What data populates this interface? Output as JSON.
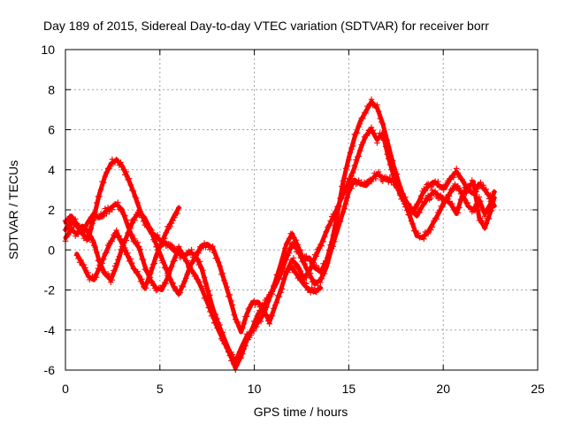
{
  "chart_data": {
    "type": "scatter",
    "title": "Day 189 of 2015, Sidereal Day-to-day VTEC variation (SDTVAR) for receiver borr",
    "xlabel": "GPS time / hours",
    "ylabel": "SDTVAR / TECUs",
    "xlim": [
      0,
      25
    ],
    "ylim": [
      -6,
      10
    ],
    "x_ticks": [
      "0",
      "5",
      "10",
      "15",
      "20",
      "25"
    ],
    "y_ticks": [
      "-6",
      "-4",
      "-2",
      "0",
      "2",
      "4",
      "6",
      "8",
      "10"
    ],
    "grid": true,
    "marker": "plus",
    "color": "#ff0000",
    "series": [
      {
        "x": [
          0.0,
          0.3,
          0.6,
          0.9,
          1.2,
          1.5,
          1.8,
          2.1,
          2.4,
          2.7,
          3.0,
          3.3,
          3.6,
          3.9,
          4.2,
          4.5,
          4.8,
          5.1,
          5.4,
          5.7,
          6.0,
          6.3,
          6.6,
          6.9,
          7.2,
          7.5,
          7.8,
          8.1,
          8.4,
          8.7,
          9.0,
          9.3,
          9.6,
          9.9,
          10.2,
          10.5,
          10.8,
          11.1,
          11.4,
          11.7,
          12.0,
          12.3,
          12.6,
          12.9,
          13.2,
          13.5,
          13.8,
          14.1,
          14.4,
          14.7,
          15.0,
          15.3,
          15.6,
          15.9,
          16.2,
          16.5,
          16.8,
          17.1,
          17.4,
          17.7,
          18.0,
          18.3,
          18.6,
          18.9,
          19.2,
          19.5,
          19.8,
          20.1,
          20.4,
          20.7,
          21.0,
          21.3,
          21.6,
          21.9,
          22.2,
          22.5,
          22.7
        ],
        "y": [
          1.0,
          1.4,
          1.2,
          0.8,
          0.5,
          1.6,
          2.8,
          3.7,
          4.3,
          4.5,
          4.2,
          3.6,
          2.9,
          2.1,
          1.4,
          0.9,
          0.7,
          0.4,
          0.3,
          0.0,
          -0.2,
          -0.3,
          -0.1,
          -0.3,
          -0.9,
          -1.9,
          -2.9,
          -3.7,
          -4.4,
          -5.1,
          -5.6,
          -4.9,
          -4.3,
          -4.0,
          -3.6,
          -3.2,
          -2.4,
          -1.6,
          -0.7,
          0.3,
          0.8,
          0.2,
          -0.5,
          -0.4,
          -0.9,
          -1.1,
          -0.6,
          0.4,
          1.8,
          3.4,
          4.6,
          5.6,
          6.4,
          6.9,
          7.4,
          7.1,
          6.3,
          5.2,
          4.1,
          3.2,
          2.4,
          1.9,
          2.2,
          2.8,
          3.2,
          3.4,
          3.2,
          3.1,
          3.6,
          3.9,
          3.5,
          3.0,
          2.8,
          3.3,
          3.0,
          2.6,
          2.2
        ]
      },
      {
        "x": [
          0.0,
          0.3,
          0.6,
          0.9,
          1.2,
          1.5,
          1.8,
          2.1,
          2.4,
          2.7,
          3.0,
          3.3,
          3.6,
          3.9,
          4.2,
          4.5,
          4.8,
          5.1,
          5.4,
          5.7,
          6.0,
          6.3,
          6.6,
          6.9,
          7.2,
          7.5,
          7.8,
          8.1,
          8.4,
          8.7,
          9.0,
          9.3,
          9.6,
          9.9,
          10.2,
          10.5,
          10.8,
          11.1,
          11.4,
          11.7,
          12.0,
          12.3,
          12.6,
          12.9,
          13.2,
          13.5,
          13.8,
          14.1,
          14.4,
          14.7,
          15.0,
          15.3,
          15.6,
          15.9,
          16.2,
          16.5,
          16.8,
          17.1,
          17.4,
          17.7,
          18.0,
          18.3,
          18.6,
          18.9,
          19.2,
          19.5,
          19.8,
          20.1,
          20.4,
          20.7,
          21.0,
          21.3,
          21.6,
          21.9,
          22.2,
          22.5,
          22.7
        ],
        "y": [
          0.6,
          1.0,
          0.8,
          1.2,
          0.9,
          0.4,
          -0.6,
          -1.2,
          -1.5,
          -0.8,
          0.1,
          0.8,
          1.5,
          1.9,
          1.6,
          1.0,
          0.3,
          -0.4,
          -1.1,
          -1.8,
          -2.2,
          -1.6,
          -0.8,
          -0.3,
          0.2,
          0.3,
          0.1,
          -0.6,
          -1.5,
          -2.4,
          -3.4,
          -4.1,
          -3.2,
          -2.6,
          -2.6,
          -3.0,
          -3.6,
          -2.8,
          -2.0,
          -1.1,
          -0.5,
          -0.8,
          -1.4,
          -1.1,
          -0.4,
          0.2,
          0.9,
          1.5,
          2.1,
          2.8,
          3.4,
          4.1,
          5.0,
          5.7,
          6.0,
          5.5,
          5.8,
          4.6,
          3.6,
          2.8,
          2.3,
          1.5,
          0.7,
          0.6,
          0.9,
          1.4,
          1.9,
          2.5,
          2.3,
          1.8,
          2.7,
          3.1,
          3.4,
          1.6,
          1.1,
          1.9,
          2.6
        ]
      },
      {
        "x": [
          0.0,
          0.3,
          0.6,
          0.9,
          1.2,
          1.5,
          1.8,
          2.1,
          2.4,
          2.7,
          3.0,
          3.3,
          3.6,
          3.9,
          4.2,
          4.5,
          4.8,
          5.1,
          5.4,
          5.7,
          6.0,
          6.3,
          6.6,
          6.9,
          7.2,
          7.5,
          7.8,
          8.1,
          8.4,
          8.7,
          9.0,
          9.3,
          9.6,
          9.9,
          10.2,
          10.5,
          10.8,
          11.1,
          11.4,
          11.7,
          12.0,
          12.3,
          12.6,
          12.9,
          13.2,
          13.5,
          13.8,
          14.1,
          14.4,
          14.7,
          15.0,
          15.3,
          15.6,
          15.9,
          16.2,
          16.5,
          16.8,
          17.1,
          17.4,
          17.7,
          18.0,
          18.3,
          18.6,
          18.9,
          19.2,
          19.5,
          19.8,
          20.1,
          20.4,
          20.7,
          21.0,
          21.3,
          21.6,
          21.9,
          22.2,
          22.5,
          22.7
        ],
        "y": [
          1.4,
          1.7,
          1.3,
          0.9,
          1.4,
          1.8,
          1.6,
          1.9,
          2.1,
          2.3,
          2.0,
          1.2,
          0.5,
          0.1,
          -0.8,
          -1.5,
          -1.9,
          -2.0,
          -1.4,
          -0.6,
          0.1,
          -0.4,
          -0.9,
          -1.3,
          -1.9,
          -2.6,
          -3.3,
          -4.0,
          -4.6,
          -5.2,
          -5.9,
          -5.3,
          -4.5,
          -3.9,
          -3.2,
          -2.8,
          -2.3,
          -1.8,
          -1.2,
          -0.4,
          0.3,
          0.0,
          -0.6,
          -1.2,
          -1.7,
          -1.5,
          -0.9,
          0.1,
          1.0,
          1.9,
          2.9,
          3.5,
          3.3,
          3.2,
          3.5,
          3.8,
          3.6,
          3.5,
          3.4,
          3.0,
          2.5,
          2.0,
          1.7,
          2.2,
          2.6,
          2.9,
          2.7,
          2.4,
          2.9,
          3.2,
          2.8,
          2.2,
          2.0,
          2.5,
          1.8,
          2.3,
          2.9
        ]
      },
      {
        "x": [
          0.6,
          0.9,
          1.2,
          1.5,
          1.8,
          2.1,
          2.4,
          2.7,
          3.0,
          3.3,
          3.6,
          3.9,
          4.2,
          4.5,
          4.8,
          5.1,
          5.4,
          5.7,
          6.0
        ],
        "y": [
          -0.2,
          -0.7,
          -1.3,
          -1.5,
          -0.9,
          -0.2,
          0.4,
          0.9,
          0.3,
          -0.3,
          -0.9,
          -1.3,
          -1.9,
          -1.2,
          -0.3,
          0.4,
          1.0,
          1.6,
          2.1
        ]
      },
      {
        "x": [
          12.0,
          12.3,
          12.6,
          12.9,
          13.2,
          13.5
        ],
        "y": [
          -0.9,
          -1.3,
          -1.7,
          -2.0,
          -2.1,
          -1.9
        ]
      }
    ]
  }
}
